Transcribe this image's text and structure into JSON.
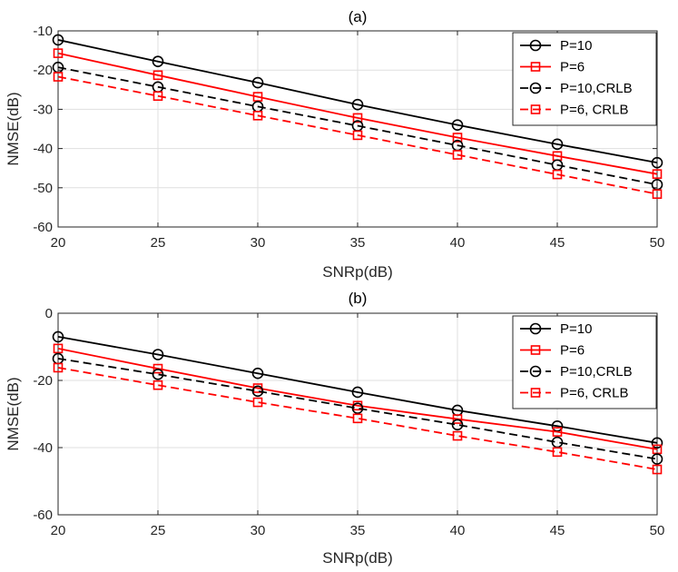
{
  "colors": {
    "black_series": "#000000",
    "red_series": "#ff0000",
    "grid": "#dfdfdf",
    "axis": "#262626"
  },
  "chart_data": [
    {
      "type": "line",
      "title": "(a)",
      "xlabel": "SNRp(dB)",
      "ylabel": "NMSE(dB)",
      "xlim": [
        20,
        50
      ],
      "ylim": [
        -60,
        -10
      ],
      "xticks": [
        20,
        25,
        30,
        35,
        40,
        45,
        50
      ],
      "yticks": [
        -60,
        -50,
        -40,
        -30,
        -20,
        -10
      ],
      "grid": true,
      "legend_position": "top-right",
      "x": [
        20,
        25,
        30,
        35,
        40,
        45,
        50
      ],
      "series": [
        {
          "name": "P=10",
          "color": "#000000",
          "dash": "solid",
          "marker": "circle",
          "values": [
            -12.3,
            -17.8,
            -23.2,
            -28.8,
            -34.0,
            -38.9,
            -43.6
          ]
        },
        {
          "name": "P=6",
          "color": "#ff0000",
          "dash": "solid",
          "marker": "square",
          "values": [
            -15.7,
            -21.3,
            -26.8,
            -32.2,
            -37.2,
            -41.9,
            -46.5
          ]
        },
        {
          "name": "P=10,CRLB",
          "color": "#000000",
          "dash": "dashed",
          "marker": "circle",
          "values": [
            -19.3,
            -24.3,
            -29.3,
            -34.2,
            -39.2,
            -44.2,
            -49.2
          ]
        },
        {
          "name": "P=6,  CRLB",
          "color": "#ff0000",
          "dash": "dashed",
          "marker": "square",
          "values": [
            -21.7,
            -26.6,
            -31.6,
            -36.6,
            -41.6,
            -46.6,
            -51.6
          ]
        }
      ]
    },
    {
      "type": "line",
      "title": "(b)",
      "xlabel": "SNRp(dB)",
      "ylabel": "NMSE(dB)",
      "xlim": [
        20,
        50
      ],
      "ylim": [
        -60,
        0
      ],
      "xticks": [
        20,
        25,
        30,
        35,
        40,
        45,
        50
      ],
      "yticks": [
        -60,
        -40,
        -20,
        0
      ],
      "grid": true,
      "legend_position": "top-right",
      "x": [
        20,
        25,
        30,
        35,
        40,
        45,
        50
      ],
      "series": [
        {
          "name": "P=10",
          "color": "#000000",
          "dash": "solid",
          "marker": "circle",
          "values": [
            -7.0,
            -12.3,
            -17.9,
            -23.5,
            -28.9,
            -33.6,
            -38.6
          ]
        },
        {
          "name": "P=6",
          "color": "#ff0000",
          "dash": "solid",
          "marker": "square",
          "values": [
            -10.5,
            -16.5,
            -22.3,
            -27.5,
            -31.5,
            -35.3,
            -40.5
          ]
        },
        {
          "name": "P=10,CRLB",
          "color": "#000000",
          "dash": "dashed",
          "marker": "circle",
          "values": [
            -13.5,
            -18.2,
            -23.2,
            -28.3,
            -33.2,
            -38.4,
            -43.4
          ]
        },
        {
          "name": "P=6,  CRLB",
          "color": "#ff0000",
          "dash": "dashed",
          "marker": "square",
          "values": [
            -16.2,
            -21.4,
            -26.5,
            -31.3,
            -36.5,
            -41.3,
            -46.5
          ]
        }
      ]
    }
  ]
}
